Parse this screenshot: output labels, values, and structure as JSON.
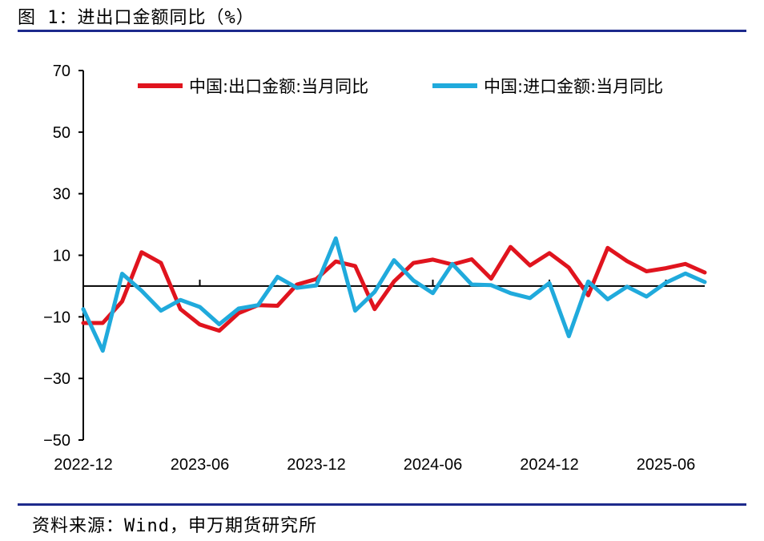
{
  "header": {
    "title": "图 1：进出口金额同比（%）"
  },
  "footer": {
    "source": "资料来源：Wind，申万期货研究所"
  },
  "colors": {
    "rule": "#1d2a8c",
    "export": "#e0141e",
    "import": "#20aadc",
    "axis": "#000000"
  },
  "chart_data": {
    "type": "line",
    "title": "",
    "xlabel": "",
    "ylabel": "",
    "ylim": [
      -50,
      70
    ],
    "yticks": [
      70,
      50,
      30,
      10,
      -10,
      -30,
      -50
    ],
    "grid": false,
    "legend_position": "top",
    "x": [
      "2022-12",
      "2023-01",
      "2023-02",
      "2023-03",
      "2023-04",
      "2023-05",
      "2023-06",
      "2023-07",
      "2023-08",
      "2023-09",
      "2023-10",
      "2023-11",
      "2023-12",
      "2024-01",
      "2024-02",
      "2024-03",
      "2024-04",
      "2024-05",
      "2024-06",
      "2024-07",
      "2024-08",
      "2024-09",
      "2024-10",
      "2024-11",
      "2024-12",
      "2025-01",
      "2025-02",
      "2025-03",
      "2025-04",
      "2025-05",
      "2025-06",
      "2025-07",
      "2025-08"
    ],
    "xtick_labels": [
      "2022-12",
      "2023-06",
      "2023-12",
      "2024-06",
      "2024-12",
      "2025-06"
    ],
    "series": [
      {
        "name": "中国:出口金额:当月同比",
        "color": "#e0141e",
        "values": [
          -12,
          -12,
          -5,
          11,
          7.5,
          -7.5,
          -12.5,
          -14.5,
          -8.8,
          -6.2,
          -6.4,
          0.5,
          2.3,
          8,
          6.5,
          -7.5,
          1.5,
          7.5,
          8.6,
          7,
          8.7,
          2.4,
          12.7,
          6.7,
          10.7,
          6,
          -3,
          12.4,
          8.1,
          4.8,
          5.8,
          7.2,
          4.4
        ]
      },
      {
        "name": "中国:进口金额:当月同比",
        "color": "#20aadc",
        "values": [
          -7.5,
          -21,
          4,
          -1.5,
          -8,
          -4.5,
          -6.8,
          -12.4,
          -7.3,
          -6.2,
          3,
          -0.6,
          0.2,
          15.5,
          -8,
          -1.9,
          8.4,
          1.8,
          -2.3,
          7.2,
          0.5,
          0.3,
          -2.3,
          -3.9,
          1,
          -16.3,
          1.5,
          -4.3,
          -0.2,
          -3.4,
          1.1,
          4.1,
          1.3
        ]
      }
    ]
  }
}
